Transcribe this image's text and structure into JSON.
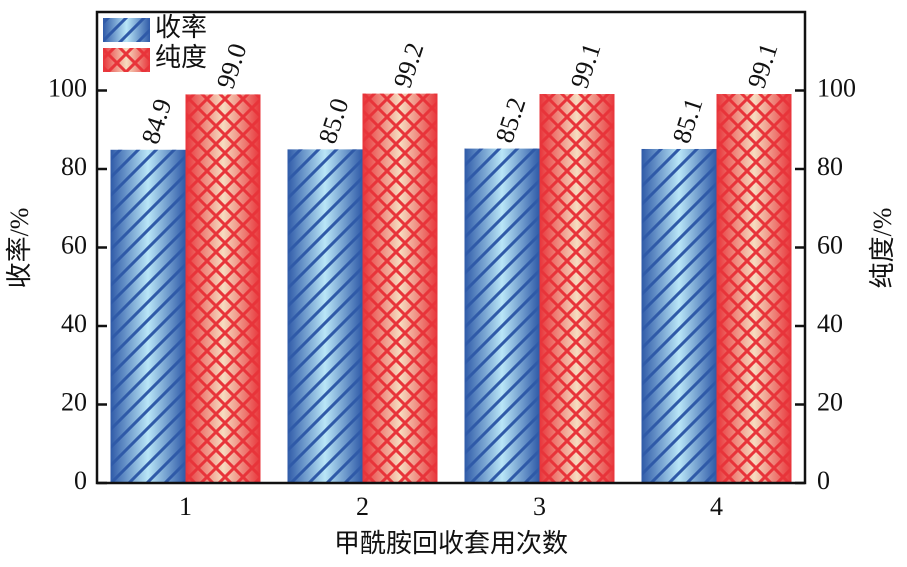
{
  "chart_data": {
    "type": "bar",
    "x_label": "甲酰胺回收套用次数",
    "y_label": "收率/%",
    "y2_label": "纯度/%",
    "categories": [
      "1",
      "2",
      "3",
      "4"
    ],
    "ylim": [
      0,
      120
    ],
    "yticks": [
      0,
      20,
      40,
      60,
      80,
      100
    ],
    "y2lim": [
      0,
      120
    ],
    "y2ticks": [
      0,
      20,
      40,
      60,
      80,
      100
    ],
    "legend": "upper left",
    "series": [
      {
        "name": "收率",
        "color": "#2f5aa8",
        "hatch": "diagonal",
        "values": [
          84.9,
          85.0,
          85.2,
          85.1
        ],
        "value_labels": [
          "84.9",
          "85.0",
          "85.2",
          "85.1"
        ]
      },
      {
        "name": "纯度",
        "color": "#e8343a",
        "hatch": "cross",
        "axis": "y2",
        "values": [
          99.0,
          99.2,
          99.1,
          99.1
        ],
        "value_labels": [
          "99.0",
          "99.2",
          "99.1",
          "99.1"
        ]
      }
    ]
  }
}
